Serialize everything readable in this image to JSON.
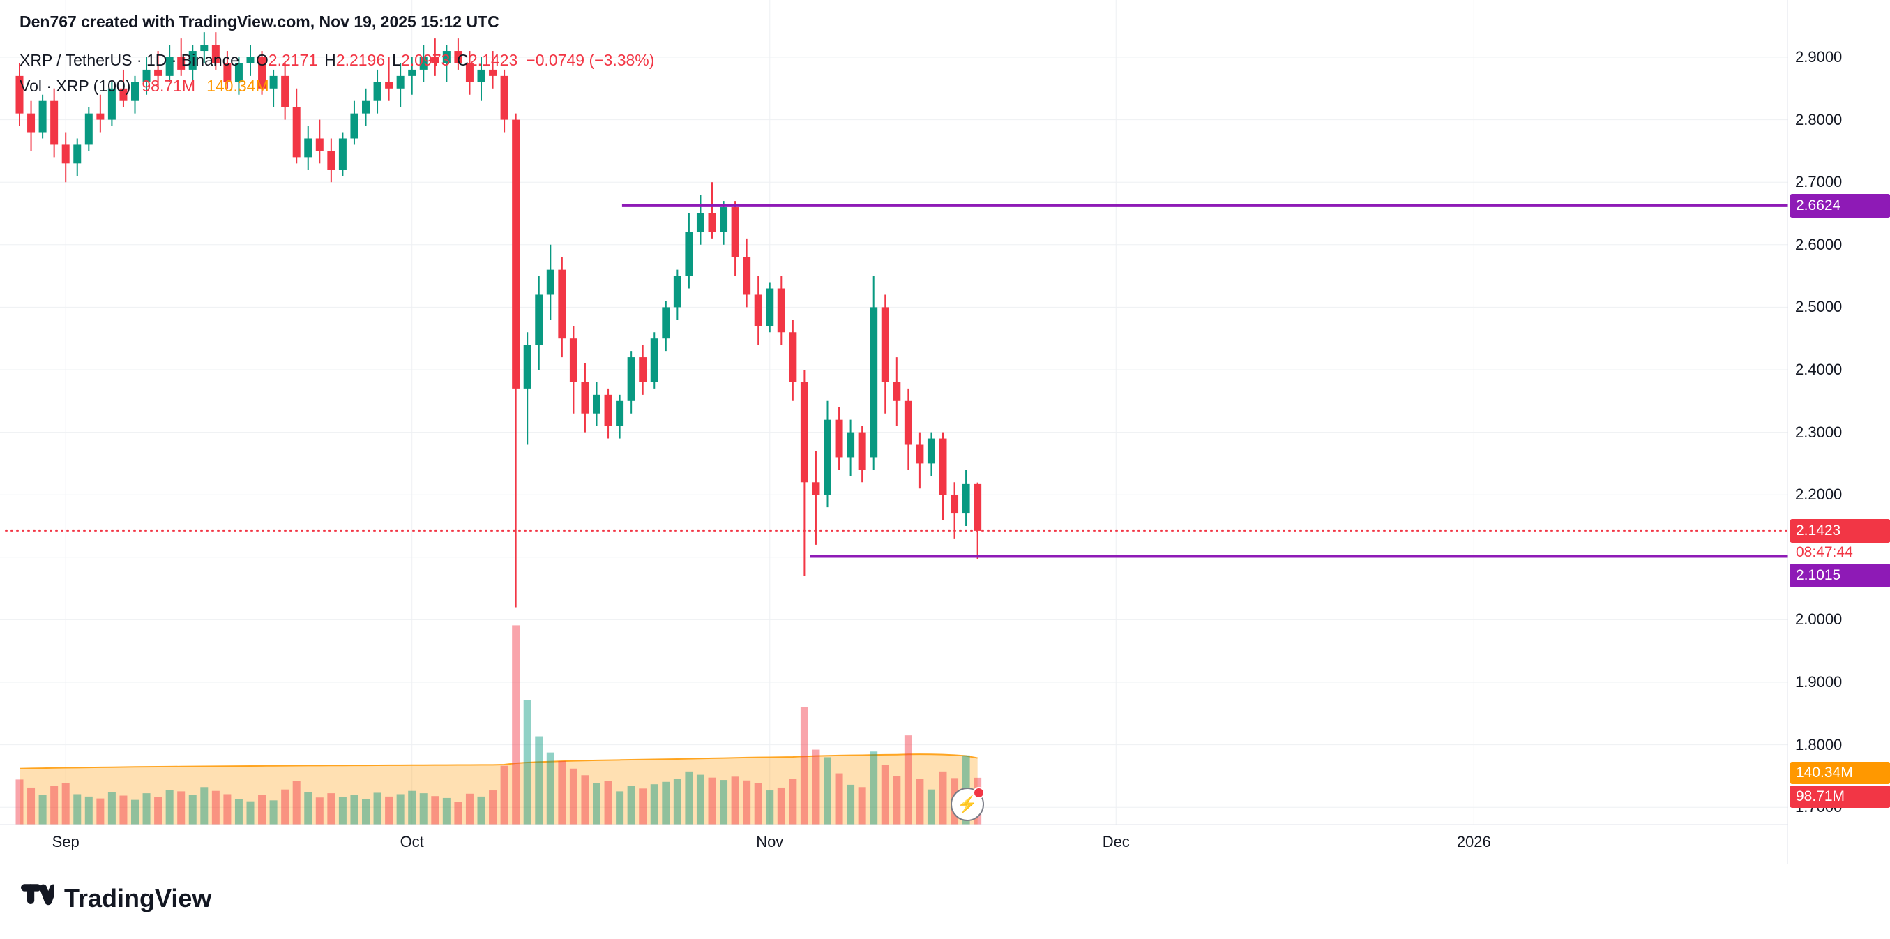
{
  "header": {
    "attribution": "Den767 created with TradingView.com, Nov 19, 2025 15:12 UTC"
  },
  "legend": {
    "symbol_line": "XRP / TetherUS · 1D · Binance",
    "ohlc": [
      {
        "k": "O",
        "v": "2.2171"
      },
      {
        "k": "H",
        "v": "2.2196"
      },
      {
        "k": "L",
        "v": "2.0973"
      },
      {
        "k": "C",
        "v": "2.1423"
      }
    ],
    "change": "−0.0749 (−3.38%)",
    "volume_label": "Vol · XRP (100)",
    "volume_value": "98.71M",
    "volume_ma": "140.34M"
  },
  "badges": {
    "resistance": "2.6624",
    "last_price": "2.1423",
    "countdown": "08:47:44",
    "support": "2.1015",
    "volume_ma": "140.34M",
    "volume_value": "98.71M"
  },
  "footer": {
    "brand": "TradingView"
  },
  "marker": {
    "flash_icon": "⚡"
  },
  "chart_data": {
    "type": "candlestick",
    "symbol": "XRP / TetherUS",
    "interval": "1D",
    "exchange": "Binance",
    "last": {
      "open": 2.2171,
      "high": 2.2196,
      "low": 2.0973,
      "close": 2.1423,
      "change": -0.0749,
      "change_pct": -3.38,
      "volume_m": 98.71,
      "volume_ma_m": 140.34
    },
    "y_axis": {
      "min": 1.7,
      "max": 2.9,
      "step": 0.1,
      "hidden_labels": [
        2.1
      ],
      "side": "right"
    },
    "x_axis": {
      "ticks": [
        {
          "label": "Sep",
          "index": 4
        },
        {
          "label": "Oct",
          "index": 34
        },
        {
          "label": "Nov",
          "index": 65
        },
        {
          "label": "Dec",
          "index": 95
        },
        {
          "label": "2026",
          "index": 126
        }
      ]
    },
    "levels": [
      {
        "label": "2.6624",
        "price": 2.6624,
        "from_index": 52.2,
        "color": "#8e1ab6"
      },
      {
        "label": "2.1015",
        "price": 2.1015,
        "from_index": 68.5,
        "color": "#8e1ab6"
      }
    ],
    "last_price_line": {
      "price": 2.1423,
      "color": "#f23645",
      "style": "dotted"
    },
    "colors": {
      "up": "#089981",
      "down": "#f23645",
      "vol_up": "rgba(8,153,129,0.45)",
      "vol_down": "rgba(242,54,69,0.45)",
      "ma_fill": "rgba(255,152,0,0.30)",
      "ma_line": "rgba(255,152,0,0.85)",
      "grid": "#eef0f3",
      "axis_line": "#e0e3eb"
    },
    "candles": [
      [
        "2025-08-28",
        2.87,
        2.89,
        2.79,
        2.81,
        95
      ],
      [
        "2025-08-29",
        2.81,
        2.83,
        2.75,
        2.78,
        78
      ],
      [
        "2025-08-30",
        2.78,
        2.84,
        2.77,
        2.83,
        62
      ],
      [
        "2025-08-31",
        2.83,
        2.85,
        2.74,
        2.76,
        81
      ],
      [
        "2025-09-01",
        2.76,
        2.78,
        2.7,
        2.73,
        88
      ],
      [
        "2025-09-02",
        2.73,
        2.77,
        2.71,
        2.76,
        64
      ],
      [
        "2025-09-03",
        2.76,
        2.82,
        2.75,
        2.81,
        59
      ],
      [
        "2025-09-04",
        2.81,
        2.84,
        2.78,
        2.8,
        55
      ],
      [
        "2025-09-05",
        2.8,
        2.86,
        2.79,
        2.85,
        68
      ],
      [
        "2025-09-06",
        2.85,
        2.88,
        2.82,
        2.83,
        61
      ],
      [
        "2025-09-07",
        2.83,
        2.87,
        2.81,
        2.86,
        52
      ],
      [
        "2025-09-08",
        2.86,
        2.9,
        2.84,
        2.88,
        66
      ],
      [
        "2025-09-09",
        2.88,
        2.91,
        2.85,
        2.87,
        58
      ],
      [
        "2025-09-10",
        2.87,
        2.92,
        2.86,
        2.9,
        73
      ],
      [
        "2025-09-11",
        2.9,
        2.93,
        2.87,
        2.88,
        70
      ],
      [
        "2025-09-12",
        2.88,
        2.92,
        2.86,
        2.91,
        63
      ],
      [
        "2025-09-13",
        2.91,
        2.94,
        2.89,
        2.92,
        79
      ],
      [
        "2025-09-14",
        2.92,
        2.94,
        2.88,
        2.89,
        71
      ],
      [
        "2025-09-15",
        2.89,
        2.91,
        2.85,
        2.86,
        64
      ],
      [
        "2025-09-16",
        2.86,
        2.9,
        2.84,
        2.89,
        54
      ],
      [
        "2025-09-17",
        2.89,
        2.92,
        2.87,
        2.9,
        49
      ],
      [
        "2025-09-18",
        2.9,
        2.91,
        2.84,
        2.85,
        62
      ],
      [
        "2025-09-19",
        2.85,
        2.88,
        2.82,
        2.87,
        51
      ],
      [
        "2025-09-20",
        2.87,
        2.89,
        2.8,
        2.82,
        74
      ],
      [
        "2025-09-21",
        2.82,
        2.85,
        2.73,
        2.74,
        92
      ],
      [
        "2025-09-22",
        2.74,
        2.79,
        2.72,
        2.77,
        69
      ],
      [
        "2025-09-23",
        2.77,
        2.8,
        2.73,
        2.75,
        57
      ],
      [
        "2025-09-24",
        2.75,
        2.77,
        2.7,
        2.72,
        66
      ],
      [
        "2025-09-25",
        2.72,
        2.78,
        2.71,
        2.77,
        58
      ],
      [
        "2025-09-26",
        2.77,
        2.83,
        2.76,
        2.81,
        63
      ],
      [
        "2025-09-27",
        2.81,
        2.85,
        2.79,
        2.83,
        54
      ],
      [
        "2025-09-28",
        2.83,
        2.88,
        2.81,
        2.86,
        67
      ],
      [
        "2025-09-29",
        2.86,
        2.9,
        2.83,
        2.85,
        59
      ],
      [
        "2025-09-30",
        2.85,
        2.89,
        2.82,
        2.87,
        64
      ],
      [
        "2025-10-01",
        2.87,
        2.9,
        2.84,
        2.88,
        71
      ],
      [
        "2025-10-02",
        2.88,
        2.92,
        2.86,
        2.9,
        66
      ],
      [
        "2025-10-03",
        2.9,
        2.93,
        2.87,
        2.89,
        60
      ],
      [
        "2025-10-04",
        2.89,
        2.92,
        2.86,
        2.91,
        56
      ],
      [
        "2025-10-05",
        2.91,
        2.93,
        2.88,
        2.89,
        48
      ],
      [
        "2025-10-06",
        2.89,
        2.91,
        2.84,
        2.86,
        65
      ],
      [
        "2025-10-07",
        2.86,
        2.9,
        2.83,
        2.88,
        59
      ],
      [
        "2025-10-08",
        2.88,
        2.91,
        2.85,
        2.87,
        72
      ],
      [
        "2025-10-09",
        2.87,
        2.88,
        2.78,
        2.8,
        124
      ],
      [
        "2025-10-10",
        2.8,
        2.81,
        2.02,
        2.37,
        420
      ],
      [
        "2025-10-11",
        2.37,
        2.46,
        2.28,
        2.44,
        262
      ],
      [
        "2025-10-12",
        2.44,
        2.55,
        2.4,
        2.52,
        186
      ],
      [
        "2025-10-13",
        2.52,
        2.6,
        2.48,
        2.56,
        152
      ],
      [
        "2025-10-14",
        2.56,
        2.58,
        2.42,
        2.45,
        134
      ],
      [
        "2025-10-15",
        2.45,
        2.47,
        2.33,
        2.38,
        118
      ],
      [
        "2025-10-16",
        2.38,
        2.41,
        2.3,
        2.33,
        104
      ],
      [
        "2025-10-17",
        2.33,
        2.38,
        2.31,
        2.36,
        88
      ],
      [
        "2025-10-18",
        2.36,
        2.37,
        2.29,
        2.31,
        92
      ],
      [
        "2025-10-19",
        2.31,
        2.36,
        2.29,
        2.35,
        70
      ],
      [
        "2025-10-20",
        2.35,
        2.43,
        2.33,
        2.42,
        82
      ],
      [
        "2025-10-21",
        2.42,
        2.44,
        2.36,
        2.38,
        76
      ],
      [
        "2025-10-22",
        2.38,
        2.46,
        2.37,
        2.45,
        85
      ],
      [
        "2025-10-23",
        2.45,
        2.51,
        2.43,
        2.5,
        90
      ],
      [
        "2025-10-24",
        2.5,
        2.56,
        2.48,
        2.55,
        97
      ],
      [
        "2025-10-25",
        2.55,
        2.65,
        2.53,
        2.62,
        112
      ],
      [
        "2025-10-26",
        2.62,
        2.68,
        2.6,
        2.65,
        105
      ],
      [
        "2025-10-27",
        2.65,
        2.7,
        2.61,
        2.62,
        99
      ],
      [
        "2025-10-28",
        2.62,
        2.67,
        2.6,
        2.66,
        94
      ],
      [
        "2025-10-29",
        2.66,
        2.67,
        2.55,
        2.58,
        101
      ],
      [
        "2025-10-30",
        2.58,
        2.61,
        2.5,
        2.52,
        93
      ],
      [
        "2025-10-31",
        2.52,
        2.55,
        2.44,
        2.47,
        87
      ],
      [
        "2025-11-01",
        2.47,
        2.54,
        2.46,
        2.53,
        72
      ],
      [
        "2025-11-02",
        2.53,
        2.55,
        2.44,
        2.46,
        78
      ],
      [
        "2025-11-03",
        2.46,
        2.48,
        2.35,
        2.38,
        96
      ],
      [
        "2025-11-04",
        2.38,
        2.4,
        2.07,
        2.22,
        248
      ],
      [
        "2025-11-05",
        2.22,
        2.27,
        2.12,
        2.2,
        158
      ],
      [
        "2025-11-06",
        2.2,
        2.35,
        2.18,
        2.32,
        142
      ],
      [
        "2025-11-07",
        2.32,
        2.34,
        2.24,
        2.26,
        108
      ],
      [
        "2025-11-08",
        2.26,
        2.32,
        2.23,
        2.3,
        84
      ],
      [
        "2025-11-09",
        2.3,
        2.31,
        2.22,
        2.24,
        79
      ],
      [
        "2025-11-10",
        2.26,
        2.55,
        2.24,
        2.5,
        154
      ],
      [
        "2025-11-11",
        2.5,
        2.52,
        2.33,
        2.38,
        126
      ],
      [
        "2025-11-12",
        2.38,
        2.42,
        2.31,
        2.35,
        102
      ],
      [
        "2025-11-13",
        2.35,
        2.37,
        2.24,
        2.28,
        188
      ],
      [
        "2025-11-14",
        2.28,
        2.3,
        2.21,
        2.25,
        96
      ],
      [
        "2025-11-15",
        2.25,
        2.3,
        2.23,
        2.29,
        74
      ],
      [
        "2025-11-16",
        2.29,
        2.3,
        2.16,
        2.2,
        112
      ],
      [
        "2025-11-17",
        2.2,
        2.22,
        2.13,
        2.17,
        98
      ],
      [
        "2025-11-18",
        2.17,
        2.24,
        2.15,
        2.2171,
        146
      ],
      [
        "2025-11-19",
        2.2171,
        2.2196,
        2.0973,
        2.1423,
        98.71
      ]
    ],
    "volume_ma_series": [
      118,
      118.5,
      119,
      119.4,
      119.8,
      120.1,
      120.4,
      120.7,
      121,
      121.3,
      121.6,
      121.8,
      122,
      122.2,
      122.4,
      122.6,
      122.8,
      123,
      123.2,
      123.4,
      123.6,
      123.8,
      123.9,
      124,
      124.2,
      124.4,
      124.5,
      124.6,
      124.7,
      124.8,
      124.9,
      125,
      125.1,
      125.2,
      125.3,
      125.4,
      125.5,
      125.6,
      125.7,
      125.8,
      125.9,
      126,
      126.4,
      129.4,
      130.8,
      131.9,
      132.8,
      133.6,
      134.3,
      134.9,
      135.4,
      135.9,
      136.3,
      136.7,
      137.1,
      137.5,
      137.9,
      138.3,
      138.8,
      139.3,
      139.8,
      140.3,
      140.8,
      141.3,
      141.7,
      142,
      142.3,
      142.7,
      143.8,
      144.6,
      145.3,
      145.8,
      146.1,
      146.3,
      146.9,
      147.3,
      147.5,
      148.2,
      148.3,
      148.1,
      147.6,
      146.6,
      144.9,
      140.34
    ]
  }
}
